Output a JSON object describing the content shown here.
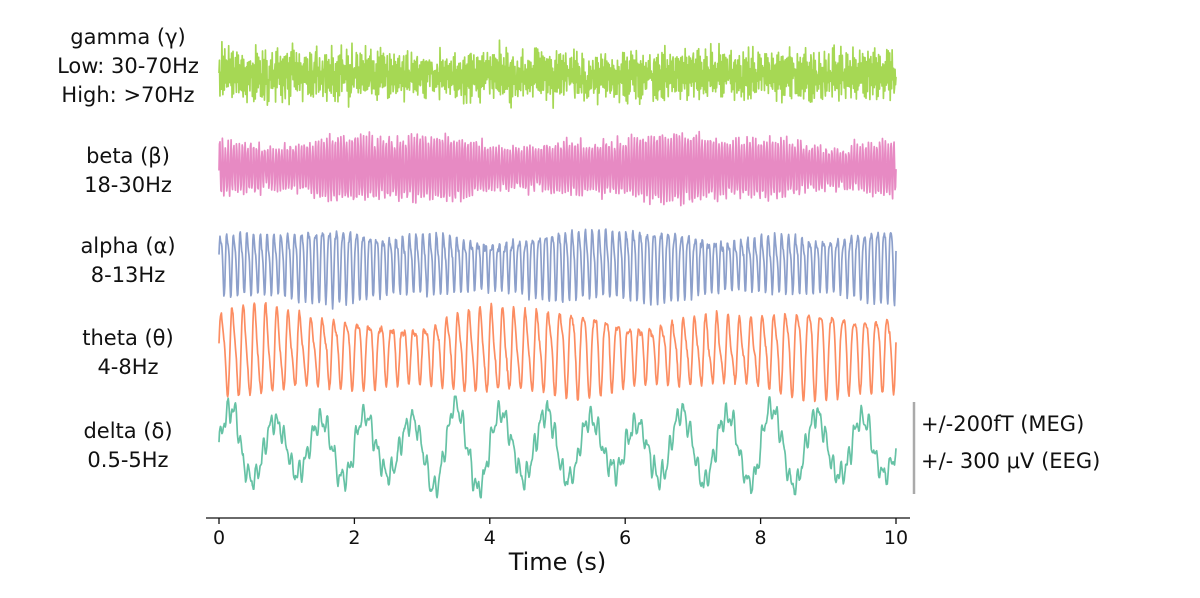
{
  "chart_data": {
    "type": "line",
    "title": "",
    "xlabel": "Time (s)",
    "ylabel": "",
    "xlim": [
      0,
      10
    ],
    "x_ticks": [
      0,
      2,
      4,
      6,
      8,
      10
    ],
    "x_tick_labels": [
      "0",
      "2",
      "4",
      "6",
      "8",
      "10"
    ],
    "series": [
      {
        "name": "gamma (γ)",
        "symbol": "γ",
        "range_lines": [
          "Low: 30-70Hz",
          "High: >70Hz"
        ],
        "color": "#a6d854",
        "freq_hz": 50,
        "amplitude_rel": 0.85
      },
      {
        "name": "beta (β)",
        "symbol": "β",
        "range_lines": [
          "18-30Hz"
        ],
        "color": "#e78ac3",
        "freq_hz": 24,
        "amplitude_rel": 0.85
      },
      {
        "name": "alpha (α)",
        "symbol": "α",
        "range_lines": [
          "8-13Hz"
        ],
        "color": "#8da0cb",
        "freq_hz": 10,
        "amplitude_rel": 0.85
      },
      {
        "name": "theta (θ)",
        "symbol": "θ",
        "range_lines": [
          "4-8Hz"
        ],
        "color": "#fc8d62",
        "freq_hz": 6,
        "amplitude_rel": 0.95
      },
      {
        "name": "delta (δ)",
        "symbol": "δ",
        "range_lines": [
          "0.5-5Hz"
        ],
        "color": "#66c2a5",
        "freq_hz": 1.5,
        "amplitude_rel": 0.95
      }
    ],
    "scale_bar": {
      "color": "#aaaaaa",
      "lines": [
        "+/-200fT (MEG)",
        "+/- 300 μV (EEG)"
      ]
    }
  }
}
